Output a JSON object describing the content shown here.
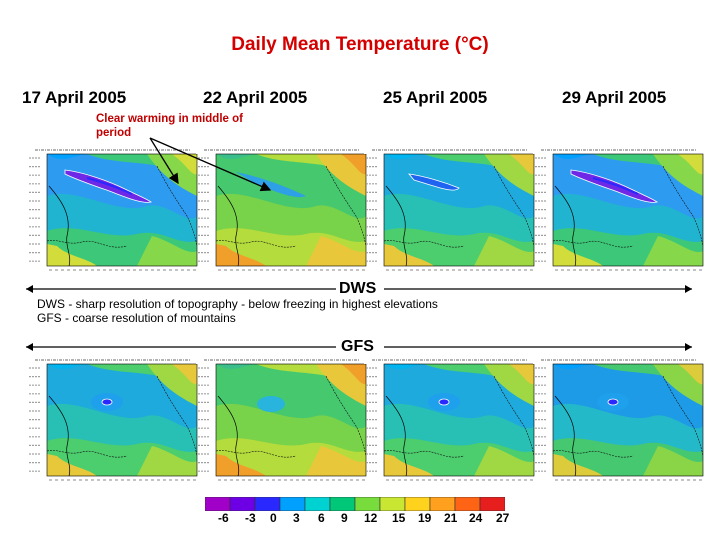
{
  "title": "Daily Mean Temperature (°C)",
  "dates": [
    "17 April 2005",
    "22 April 2005",
    "25 April 2005",
    "29 April 2005"
  ],
  "annotation": "Clear warming in middle of period",
  "dws_label": "DWS",
  "gfs_label": "GFS",
  "description": [
    "DWS - sharp resolution of topography - below freezing in highest elevations",
    "GFS - coarse resolution of mountains"
  ],
  "colorbar": {
    "labels": [
      "-6",
      "-3",
      "0",
      "3",
      "6",
      "9",
      "12",
      "15",
      "19",
      "21",
      "24",
      "27"
    ],
    "colors": [
      "#a000c8",
      "#6e00e6",
      "#2828ff",
      "#00a0ff",
      "#00d2d2",
      "#00c878",
      "#78dc3c",
      "#c8e632",
      "#ffd21e",
      "#ffa01e",
      "#ff6414",
      "#e61e1e"
    ]
  },
  "panels": {
    "dws": [
      {
        "id": "dws-apr17",
        "scheme": "cold"
      },
      {
        "id": "dws-apr22",
        "scheme": "warm"
      },
      {
        "id": "dws-apr25",
        "scheme": "mid"
      },
      {
        "id": "dws-apr29",
        "scheme": "cold"
      }
    ],
    "gfs": [
      {
        "id": "gfs-apr17",
        "scheme": "mid"
      },
      {
        "id": "gfs-apr22",
        "scheme": "warm"
      },
      {
        "id": "gfs-apr25",
        "scheme": "mid"
      },
      {
        "id": "gfs-apr29",
        "scheme": "midcold"
      }
    ]
  }
}
